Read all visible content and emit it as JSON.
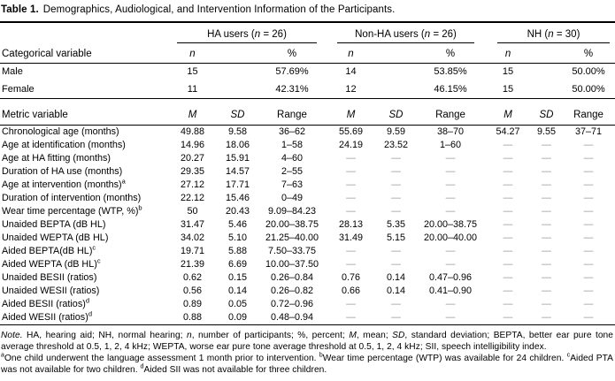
{
  "title": {
    "label": "Table 1.",
    "text": "Demographics, Audiological, and Intervention Information of the Participants."
  },
  "groups": [
    {
      "prefix": "HA users (",
      "var": "n",
      "suffix": " = 26)"
    },
    {
      "prefix": "Non-HA users (",
      "var": "n",
      "suffix": " = 26)"
    },
    {
      "prefix": "NH (",
      "var": "n",
      "suffix": " = 30)"
    }
  ],
  "categorical": {
    "header_label": "Categorical variable",
    "col_n": "n",
    "col_pct": "%",
    "rows": [
      {
        "label": "Male",
        "values": [
          "15",
          "57.69%",
          "14",
          "53.85%",
          "15",
          "50.00%"
        ]
      },
      {
        "label": "Female",
        "values": [
          "11",
          "42.31%",
          "12",
          "46.15%",
          "15",
          "50.00%"
        ]
      }
    ]
  },
  "metric": {
    "header_label": "Metric variable",
    "col_m": "M",
    "col_sd": "SD",
    "col_range": "Range",
    "rows": [
      {
        "label": "Chronological age (months)",
        "sup": "",
        "values": [
          "49.88",
          "9.58",
          "36–62",
          "55.69",
          "9.59",
          "38–70",
          "54.27",
          "9.55",
          "37–71"
        ]
      },
      {
        "label": "Age at identification (months)",
        "sup": "",
        "values": [
          "14.96",
          "18.06",
          "1–58",
          "24.19",
          "23.52",
          "1–60",
          "—",
          "—",
          "—"
        ]
      },
      {
        "label": "Age at HA fitting (months)",
        "sup": "",
        "values": [
          "20.27",
          "15.91",
          "4–60",
          "—",
          "—",
          "—",
          "—",
          "—",
          "—"
        ]
      },
      {
        "label": "Duration of HA use (months)",
        "sup": "",
        "values": [
          "29.35",
          "14.57",
          "2–55",
          "—",
          "—",
          "—",
          "—",
          "—",
          "—"
        ]
      },
      {
        "label": "Age at intervention (months)",
        "sup": "a",
        "values": [
          "27.12",
          "17.71",
          "7–63",
          "—",
          "—",
          "—",
          "—",
          "—",
          "—"
        ]
      },
      {
        "label": "Duration of intervention (months)",
        "sup": "",
        "values": [
          "22.12",
          "15.46",
          "0–49",
          "—",
          "—",
          "—",
          "—",
          "—",
          "—"
        ]
      },
      {
        "label": "Wear time percentage (WTP, %)",
        "sup": "b",
        "values": [
          "50",
          "20.43",
          "9.09–84.23",
          "—",
          "—",
          "—",
          "—",
          "—",
          "—"
        ]
      },
      {
        "label": "Unaided BEPTA (dB HL)",
        "sup": "",
        "values": [
          "31.47",
          "5.46",
          "20.00–38.75",
          "28.13",
          "5.35",
          "20.00–38.75",
          "—",
          "—",
          "—"
        ]
      },
      {
        "label": "Unaided WEPTA (dB HL)",
        "sup": "",
        "values": [
          "34.02",
          "5.10",
          "21.25–40.00",
          "31.49",
          "5.15",
          "20.00–40.00",
          "—",
          "—",
          "—"
        ]
      },
      {
        "label": "Aided BEPTA(dB HL)",
        "sup": "c",
        "values": [
          "19.71",
          "5.88",
          "7.50–33.75",
          "—",
          "—",
          "—",
          "—",
          "—",
          "—"
        ]
      },
      {
        "label": "Aided WEPTA (dB HL)",
        "sup": "c",
        "values": [
          "21.39",
          "6.69",
          "10.00–37.50",
          "—",
          "—",
          "—",
          "—",
          "—",
          "—"
        ]
      },
      {
        "label": "Unaided BESII (ratios)",
        "sup": "",
        "values": [
          "0.62",
          "0.15",
          "0.26–0.84",
          "0.76",
          "0.14",
          "0.47–0.96",
          "—",
          "—",
          "—"
        ]
      },
      {
        "label": "Unaided WESII (ratios)",
        "sup": "",
        "values": [
          "0.56",
          "0.14",
          "0.26–0.82",
          "0.66",
          "0.14",
          "0.41–0.90",
          "—",
          "—",
          "—"
        ]
      },
      {
        "label": "Aided BESII (ratios)",
        "sup": "d",
        "values": [
          "0.89",
          "0.05",
          "0.72–0.96",
          "—",
          "—",
          "—",
          "—",
          "—",
          "—"
        ]
      },
      {
        "label": "Aided WESII (ratios)",
        "sup": "d",
        "values": [
          "0.88",
          "0.09",
          "0.48–0.94",
          "—",
          "—",
          "—",
          "—",
          "—",
          "—"
        ]
      }
    ]
  },
  "footnotes": {
    "note_segments": [
      {
        "text": "Note.",
        "italic": true
      },
      {
        "text": " HA, hearing aid; NH, normal hearing; "
      },
      {
        "text": "n",
        "italic": true
      },
      {
        "text": ", number of participants; %, percent; "
      },
      {
        "text": "M",
        "italic": true
      },
      {
        "text": ", mean; "
      },
      {
        "text": "SD",
        "italic": true
      },
      {
        "text": ", standard deviation; BEPTA, better ear pure tone average threshold at 0.5, 1, 2, 4 kHz; WEPTA, worse ear pure tone average threshold at 0.5, 1, 2, 4 kHz; SII, speech intelligibility index."
      }
    ],
    "marks_segments": [
      {
        "text": "a",
        "sup": true
      },
      {
        "text": "One child underwent the language assessment 1 month prior to intervention. "
      },
      {
        "text": "b",
        "sup": true
      },
      {
        "text": "Wear time percentage (WTP) was available for 24 children. "
      },
      {
        "text": "c",
        "sup": true
      },
      {
        "text": "Aided PTA was not available for two children. "
      },
      {
        "text": "d",
        "sup": true
      },
      {
        "text": "Aided SII was not available for three children."
      }
    ]
  }
}
